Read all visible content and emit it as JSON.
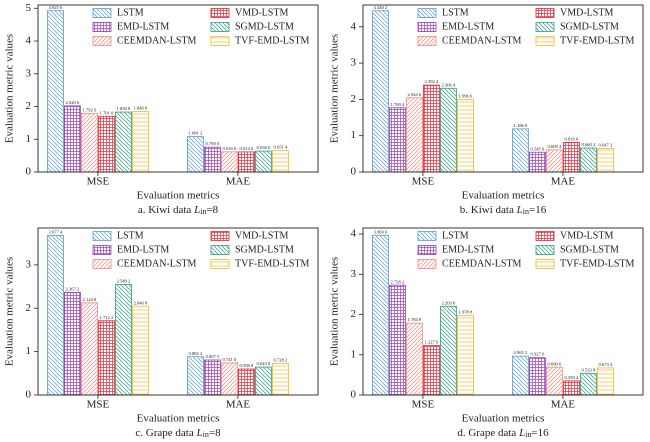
{
  "chart_data": [
    {
      "type": "bar",
      "caption": [
        "a. Kiwi data ",
        "L",
        "in",
        "=8"
      ],
      "x_label": "Evaluation metrics",
      "y_label": "Evaluation metric values",
      "categories": [
        "MSE",
        "MAE"
      ],
      "ylim": [
        0,
        5.1
      ],
      "yticks": [
        0,
        1,
        2,
        3,
        4,
        5
      ],
      "series": [
        {
          "name": "LSTM",
          "color": "#5b9bd5",
          "pattern": "back",
          "values": [
            4.9256,
            1.0812
          ],
          "value_labels": [
            "4.925 6",
            "1.081 2"
          ]
        },
        {
          "name": "EMD-LSTM",
          "color": "#9b3fb5",
          "pattern": "cross",
          "values": [
            2.0206,
            0.76
          ],
          "value_labels": [
            "2.020 6",
            "0.760 0"
          ]
        },
        {
          "name": "CEEMDAN-LSTM",
          "color": "#f08a80",
          "pattern": "fwd",
          "values": [
            1.7926,
            0.6166
          ],
          "value_labels": [
            "1.792 6",
            "0.616 6"
          ]
        },
        {
          "name": "VMD-LSTM",
          "color": "#e32636",
          "pattern": "cross",
          "values": [
            1.701,
            0.6146
          ],
          "value_labels": [
            "1.701 0",
            "0.614 6"
          ]
        },
        {
          "name": "SGMD-LSTM",
          "color": "#2e9e7e",
          "pattern": "back",
          "values": [
            1.8308,
            0.6386
          ],
          "value_labels": [
            "1.830 8",
            "0.638 6"
          ]
        },
        {
          "name": "TVF-EMD-LSTM",
          "color": "#f2b82e",
          "pattern": "horiz",
          "values": [
            1.8468,
            0.6514
          ],
          "value_labels": [
            "1.846 8",
            "0.651 4"
          ]
        }
      ]
    },
    {
      "type": "bar",
      "caption": [
        "b. Kiwi data ",
        "L",
        "in",
        "=16"
      ],
      "x_label": "Evaluation metrics",
      "y_label": "Evaluation metric values",
      "categories": [
        "MSE",
        "MAE"
      ],
      "ylim": [
        0,
        4.6
      ],
      "yticks": [
        0,
        1,
        2,
        3,
        4
      ],
      "series": [
        {
          "name": "LSTM",
          "color": "#5b9bd5",
          "pattern": "back",
          "values": [
            4.4402,
            1.1868
          ],
          "value_labels": [
            "4.440 2",
            "1.186 8"
          ]
        },
        {
          "name": "EMD-LSTM",
          "color": "#9b3fb5",
          "pattern": "cross",
          "values": [
            1.7694,
            0.545
          ],
          "value_labels": [
            "1.769 4",
            "0.545 0"
          ]
        },
        {
          "name": "CEEMDAN-LSTM",
          "color": "#f08a80",
          "pattern": "fwd",
          "values": [
            2.0446,
            0.6094
          ],
          "value_labels": [
            "2.044 6",
            "0.609 4"
          ]
        },
        {
          "name": "VMD-LSTM",
          "color": "#e32636",
          "pattern": "cross",
          "values": [
            2.3924,
            0.816
          ],
          "value_labels": [
            "2.392 4",
            "0.816 0"
          ]
        },
        {
          "name": "SGMD-LSTM",
          "color": "#2e9e7e",
          "pattern": "back",
          "values": [
            2.3064,
            0.6602
          ],
          "value_labels": [
            "2.306 4",
            "0.660 2"
          ]
        },
        {
          "name": "TVF-EMD-LSTM",
          "color": "#f2b82e",
          "pattern": "horiz",
          "values": [
            1.9966,
            0.6472
          ],
          "value_labels": [
            "1.996 6",
            "0.647 2"
          ]
        }
      ]
    },
    {
      "type": "bar",
      "caption": [
        "c. Grape data ",
        "L",
        "in",
        "=8"
      ],
      "x_label": "Evaluation metrics",
      "y_label": "Evaluation metric values",
      "categories": [
        "MSE",
        "MAE"
      ],
      "ylim": [
        0,
        3.85
      ],
      "yticks": [
        0,
        1,
        2,
        3
      ],
      "series": [
        {
          "name": "LSTM",
          "color": "#5b9bd5",
          "pattern": "back",
          "values": [
            3.6774,
            0.8822
          ],
          "value_labels": [
            "3.677 4",
            "0.882 2"
          ]
        },
        {
          "name": "EMD-LSTM",
          "color": "#9b3fb5",
          "pattern": "cross",
          "values": [
            2.3672,
            0.8075
          ],
          "value_labels": [
            "2.367 2",
            "0.807 5"
          ]
        },
        {
          "name": "CEEMDAN-LSTM",
          "color": "#f08a80",
          "pattern": "fwd",
          "values": [
            2.1248,
            0.741
          ],
          "value_labels": [
            "2.124 8",
            "0.741 0"
          ]
        },
        {
          "name": "VMD-LSTM",
          "color": "#e32636",
          "pattern": "cross",
          "values": [
            1.7122,
            0.5988
          ],
          "value_labels": [
            "1.712 2",
            "0.598 8"
          ]
        },
        {
          "name": "SGMD-LSTM",
          "color": "#2e9e7e",
          "pattern": "back",
          "values": [
            2.5482,
            0.6438
          ],
          "value_labels": [
            "2.548 2",
            "0.643 8"
          ]
        },
        {
          "name": "TVF-EMD-LSTM",
          "color": "#f2b82e",
          "pattern": "horiz",
          "values": [
            2.0468,
            0.7282
          ],
          "value_labels": [
            "2.046 8",
            "0.728 2"
          ]
        }
      ]
    },
    {
      "type": "bar",
      "caption": [
        "d. Grape data ",
        "L",
        "in",
        "=16"
      ],
      "x_label": "Evaluation metrics",
      "y_label": "Evaluation metric values",
      "categories": [
        "MSE",
        "MAE"
      ],
      "ylim": [
        0,
        4.15
      ],
      "yticks": [
        0,
        1,
        2,
        3,
        4
      ],
      "series": [
        {
          "name": "LSTM",
          "color": "#5b9bd5",
          "pattern": "back",
          "values": [
            3.969,
            0.9655
          ],
          "value_labels": [
            "3.969 0",
            "0.965 5"
          ]
        },
        {
          "name": "EMD-LSTM",
          "color": "#9b3fb5",
          "pattern": "cross",
          "values": [
            2.7282,
            0.9276
          ],
          "value_labels": [
            "2.728 2",
            "0.927 6"
          ]
        },
        {
          "name": "CEEMDAN-LSTM",
          "color": "#f08a80",
          "pattern": "fwd",
          "values": [
            1.7848,
            0.6906
          ],
          "value_labels": [
            "1.784 8",
            "0.690 6"
          ]
        },
        {
          "name": "VMD-LSTM",
          "color": "#e32636",
          "pattern": "cross",
          "values": [
            1.2276,
            0.3504
          ],
          "value_labels": [
            "1.227 6",
            "0.350 4"
          ]
        },
        {
          "name": "SGMD-LSTM",
          "color": "#2e9e7e",
          "pattern": "back",
          "values": [
            2.2036,
            0.5338
          ],
          "value_labels": [
            "2.203 6",
            "0.533 8"
          ]
        },
        {
          "name": "TVF-EMD-LSTM",
          "color": "#f2b82e",
          "pattern": "horiz",
          "values": [
            1.9788,
            0.6734
          ],
          "value_labels": [
            "1.978 8",
            "0.673 4"
          ]
        }
      ]
    }
  ]
}
